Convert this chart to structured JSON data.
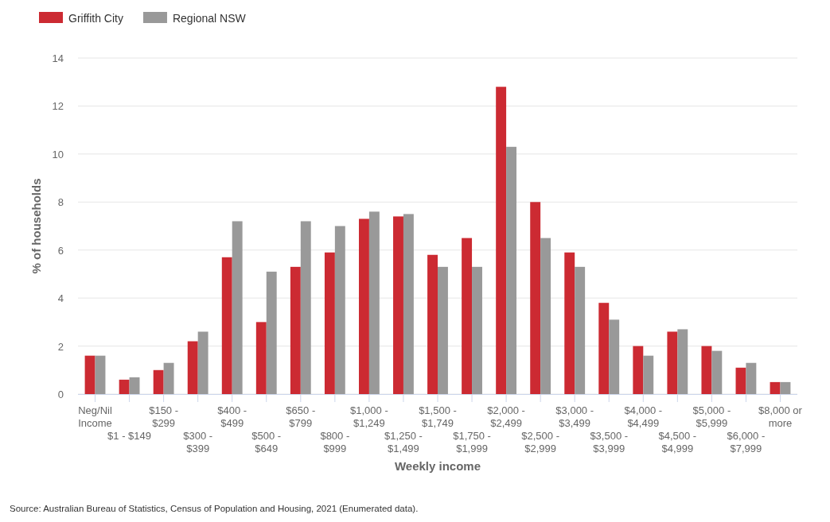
{
  "chart_data": {
    "type": "bar",
    "xlabel": "Weekly income",
    "ylabel": "% of households",
    "categories": [
      "Neg/Nil Income",
      "$1 - $149",
      "$150 - $299",
      "$300 - $399",
      "$400 - $499",
      "$500 - $649",
      "$650 - $799",
      "$800 - $999",
      "$1,000 - $1,249",
      "$1,250 - $1,499",
      "$1,500 - $1,749",
      "$1,750 - $1,999",
      "$2,000 - $2,499",
      "$2,500 - $2,999",
      "$3,000 - $3,499",
      "$3,500 - $3,999",
      "$4,000 - $4,499",
      "$4,500 - $4,999",
      "$5,000 - $5,999",
      "$6,000 - $7,999",
      "$8,000 or more"
    ],
    "series": [
      {
        "name": "Griffith City",
        "color": "#cc2a32",
        "values": [
          1.6,
          0.6,
          1.0,
          2.2,
          5.7,
          3.0,
          5.3,
          5.9,
          7.3,
          7.4,
          5.8,
          6.5,
          12.8,
          8.0,
          5.9,
          3.8,
          2.0,
          2.6,
          2.0,
          1.1,
          0.5
        ]
      },
      {
        "name": "Regional NSW",
        "color": "#999999",
        "values": [
          1.6,
          0.7,
          1.3,
          2.6,
          7.2,
          5.1,
          7.2,
          7.0,
          7.6,
          7.5,
          5.3,
          5.3,
          10.3,
          6.5,
          5.3,
          3.1,
          1.6,
          2.7,
          1.8,
          1.3,
          0.5
        ]
      }
    ],
    "ylim": [
      0,
      14
    ],
    "yticks": [
      0,
      2,
      4,
      6,
      8,
      10,
      12,
      14
    ],
    "grid": "y",
    "legend": "top left",
    "annotations": [
      "Source: Australian Bureau of Statistics, Census of Population and Housing, 2021 (Enumerated data)."
    ]
  }
}
